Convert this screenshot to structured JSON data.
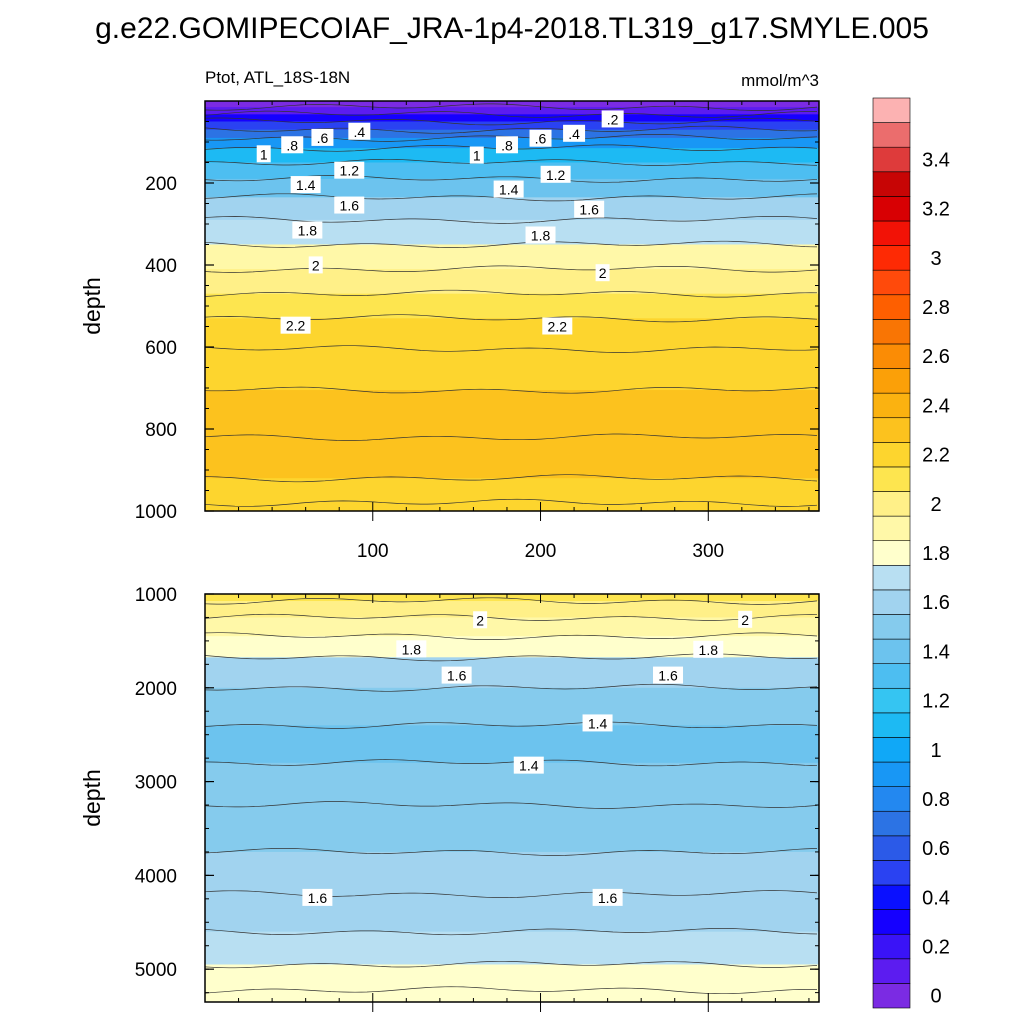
{
  "chart_data": {
    "type": "heatmap",
    "title": "g.e22.GOMIPECOIAF_JRA-1p4-2018.TL319_g17.SMYLE.005",
    "variable": "Ptot, ATL_18S-18N",
    "units": "mmol/m^3",
    "levels": [
      0,
      0.1,
      0.2,
      0.3,
      0.4,
      0.5,
      0.6,
      0.7,
      0.8,
      0.9,
      1.0,
      1.1,
      1.2,
      1.3,
      1.4,
      1.5,
      1.6,
      1.7,
      1.8,
      1.9,
      2.0,
      2.1,
      2.2,
      2.3,
      2.4,
      2.5,
      2.6,
      2.7,
      2.8,
      2.9,
      3.0,
      3.1,
      3.2,
      3.3,
      3.4,
      3.5,
      3.6
    ],
    "colorbar_labels": [
      "0",
      "0.2",
      "0.4",
      "0.6",
      "0.8",
      "1",
      "1.2",
      "1.4",
      "1.6",
      "1.8",
      "2",
      "2.2",
      "2.4",
      "2.6",
      "2.8",
      "3",
      "3.2",
      "3.4"
    ],
    "colors": [
      "#7B2BE3",
      "#5C1CF0",
      "#3A13F7",
      "#1500FF",
      "#0A10FF",
      "#2A42F2",
      "#2B5AE8",
      "#2C73E4",
      "#2388F0",
      "#1897F5",
      "#10A8F7",
      "#1DBAF3",
      "#35C5F2",
      "#4DBEF1",
      "#6CC3EE",
      "#85CBED",
      "#A1D3EF",
      "#B8DFF2",
      "#FFFFCC",
      "#FFF8A8",
      "#FFF088",
      "#FDE54F",
      "#FDD52E",
      "#FCC21E",
      "#FBB210",
      "#FBA008",
      "#FB8C05",
      "#F97504",
      "#FE5F00",
      "#FF4A0B",
      "#FE2A04",
      "#F21206",
      "#D80003",
      "#C70505",
      "#DE3B3B",
      "#EB6D6D",
      "#FCB2B2"
    ],
    "upper_panel": {
      "xlabel": "",
      "ylabel": "depth",
      "xlim": [
        0,
        366
      ],
      "ylim": [
        1000,
        0
      ],
      "xticks": [
        100,
        200,
        300
      ],
      "yticks": [
        200,
        400,
        600,
        800,
        1000
      ],
      "xtick_labels": [
        "100",
        "200",
        "300"
      ],
      "ytick_labels": [
        "200",
        "400",
        "600",
        "800",
        "1000"
      ],
      "profile": [
        {
          "depth": 5,
          "value": 0.05
        },
        {
          "depth": 25,
          "value": 0.15
        },
        {
          "depth": 40,
          "value": 0.3
        },
        {
          "depth": 60,
          "value": 0.55
        },
        {
          "depth": 80,
          "value": 0.75
        },
        {
          "depth": 100,
          "value": 0.95
        },
        {
          "depth": 130,
          "value": 1.1
        },
        {
          "depth": 170,
          "value": 1.3
        },
        {
          "depth": 210,
          "value": 1.45
        },
        {
          "depth": 260,
          "value": 1.6
        },
        {
          "depth": 320,
          "value": 1.75
        },
        {
          "depth": 380,
          "value": 1.9
        },
        {
          "depth": 440,
          "value": 2.0
        },
        {
          "depth": 500,
          "value": 2.1
        },
        {
          "depth": 560,
          "value": 2.2
        },
        {
          "depth": 650,
          "value": 2.28
        },
        {
          "depth": 760,
          "value": 2.32
        },
        {
          "depth": 880,
          "value": 2.3
        },
        {
          "depth": 960,
          "value": 2.26
        },
        {
          "depth": 1000,
          "value": 2.25
        }
      ],
      "contour_labels": [
        {
          "text": ".2",
          "x": 243,
          "depth": 45
        },
        {
          "text": ".4",
          "x": 92,
          "depth": 75
        },
        {
          "text": ".4",
          "x": 220,
          "depth": 80
        },
        {
          "text": ".6",
          "x": 70,
          "depth": 90
        },
        {
          "text": ".6",
          "x": 200,
          "depth": 92
        },
        {
          "text": ".8",
          "x": 52,
          "depth": 108
        },
        {
          "text": ".8",
          "x": 180,
          "depth": 108
        },
        {
          "text": "1",
          "x": 35,
          "depth": 130
        },
        {
          "text": "1",
          "x": 162,
          "depth": 133
        },
        {
          "text": "1.2",
          "x": 86,
          "depth": 170
        },
        {
          "text": "1.2",
          "x": 209,
          "depth": 180
        },
        {
          "text": "1.4",
          "x": 60,
          "depth": 205
        },
        {
          "text": "1.4",
          "x": 181,
          "depth": 216
        },
        {
          "text": "1.6",
          "x": 86,
          "depth": 255
        },
        {
          "text": "1.6",
          "x": 229,
          "depth": 265
        },
        {
          "text": "1.8",
          "x": 61,
          "depth": 316
        },
        {
          "text": "1.8",
          "x": 200,
          "depth": 328
        },
        {
          "text": "2",
          "x": 66,
          "depth": 401
        },
        {
          "text": "2",
          "x": 237,
          "depth": 420
        },
        {
          "text": "2.2",
          "x": 54,
          "depth": 548
        },
        {
          "text": "2.2",
          "x": 210,
          "depth": 550
        }
      ]
    },
    "lower_panel": {
      "xlabel": "",
      "ylabel": "depth",
      "xlim": [
        0,
        366
      ],
      "ylim": [
        5350,
        1000
      ],
      "yticks": [
        1000,
        2000,
        3000,
        4000,
        5000
      ],
      "ytick_labels": [
        "1000",
        "2000",
        "3000",
        "4000",
        "5000"
      ],
      "profile": [
        {
          "depth": 1000,
          "value": 2.12
        },
        {
          "depth": 1150,
          "value": 2.0
        },
        {
          "depth": 1350,
          "value": 1.9
        },
        {
          "depth": 1550,
          "value": 1.8
        },
        {
          "depth": 1800,
          "value": 1.65
        },
        {
          "depth": 2200,
          "value": 1.55
        },
        {
          "depth": 2600,
          "value": 1.45
        },
        {
          "depth": 3000,
          "value": 1.5
        },
        {
          "depth": 3500,
          "value": 1.55
        },
        {
          "depth": 4000,
          "value": 1.6
        },
        {
          "depth": 4400,
          "value": 1.65
        },
        {
          "depth": 4800,
          "value": 1.72
        },
        {
          "depth": 5100,
          "value": 1.8
        },
        {
          "depth": 5350,
          "value": 1.85
        }
      ],
      "contour_labels": [
        {
          "text": "2",
          "x": 164,
          "depth": 1280
        },
        {
          "text": "2",
          "x": 322,
          "depth": 1275
        },
        {
          "text": "1.8",
          "x": 123,
          "depth": 1590
        },
        {
          "text": "1.8",
          "x": 300,
          "depth": 1595
        },
        {
          "text": "1.6",
          "x": 150,
          "depth": 1870
        },
        {
          "text": "1.6",
          "x": 276,
          "depth": 1870
        },
        {
          "text": "1.4",
          "x": 234,
          "depth": 2380
        },
        {
          "text": "1.4",
          "x": 193,
          "depth": 2830
        },
        {
          "text": "1.6",
          "x": 67,
          "depth": 4240
        },
        {
          "text": "1.6",
          "x": 240,
          "depth": 4240
        }
      ]
    }
  }
}
